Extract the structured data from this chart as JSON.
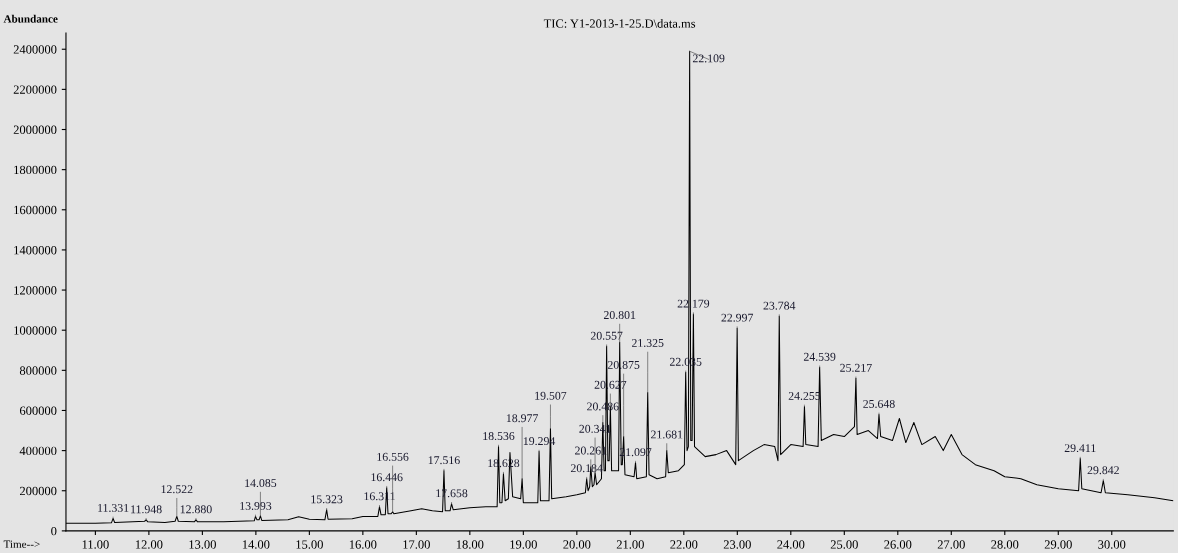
{
  "chart_data": {
    "type": "line",
    "title": "TIC: Y1-2013-1-25.D\\data.ms",
    "xlabel": "Time-->",
    "ylabel": "Abundance",
    "xlim": [
      10.45,
      31.15
    ],
    "ylim": [
      0,
      2480000
    ],
    "xticks": [
      {
        "value": 11,
        "label": "11.00"
      },
      {
        "value": 12,
        "label": "12.00"
      },
      {
        "value": 13,
        "label": "13.00"
      },
      {
        "value": 14,
        "label": "14.00"
      },
      {
        "value": 15,
        "label": "15.00"
      },
      {
        "value": 16,
        "label": "16.00"
      },
      {
        "value": 17,
        "label": "17.00"
      },
      {
        "value": 18,
        "label": "18.00"
      },
      {
        "value": 19,
        "label": "19.00"
      },
      {
        "value": 20,
        "label": "20.00"
      },
      {
        "value": 21,
        "label": "21.00"
      },
      {
        "value": 22,
        "label": "22.00"
      },
      {
        "value": 23,
        "label": "23.00"
      },
      {
        "value": 24,
        "label": "24.00"
      },
      {
        "value": 25,
        "label": "25.00"
      },
      {
        "value": 26,
        "label": "26.00"
      },
      {
        "value": 27,
        "label": "27.00"
      },
      {
        "value": 28,
        "label": "28.00"
      },
      {
        "value": 29,
        "label": "29.00"
      },
      {
        "value": 30,
        "label": "30.00"
      }
    ],
    "yticks": [
      0,
      200000,
      400000,
      600000,
      800000,
      1000000,
      1200000,
      1400000,
      1600000,
      1800000,
      2000000,
      2200000,
      2400000
    ],
    "grid": false,
    "legend": false,
    "marker": "none",
    "line_style": "solid",
    "series": [
      {
        "color": "#000000",
        "x": [
          10.45,
          11.0,
          11.3,
          11.331,
          11.36,
          11.7,
          11.92,
          11.948,
          11.98,
          12.3,
          12.49,
          12.522,
          12.55,
          12.85,
          12.88,
          12.91,
          13.4,
          13.97,
          13.993,
          14.02,
          14.06,
          14.085,
          14.11,
          14.6,
          14.8,
          15.0,
          15.29,
          15.323,
          15.35,
          15.8,
          16.0,
          16.28,
          16.311,
          16.34,
          16.42,
          16.446,
          16.47,
          16.53,
          16.556,
          16.58,
          16.9,
          17.1,
          17.3,
          17.49,
          17.516,
          17.54,
          17.63,
          17.658,
          17.69,
          18.0,
          18.3,
          18.51,
          18.536,
          18.56,
          18.6,
          18.628,
          18.66,
          18.72,
          18.75,
          18.8,
          18.95,
          18.977,
          19.0,
          19.27,
          19.294,
          19.32,
          19.48,
          19.507,
          19.53,
          19.8,
          20.0,
          20.16,
          20.184,
          20.21,
          20.24,
          20.261,
          20.29,
          20.32,
          20.341,
          20.37,
          20.46,
          20.486,
          20.51,
          20.535,
          20.557,
          20.58,
          20.605,
          20.627,
          20.65,
          20.78,
          20.801,
          20.83,
          20.85,
          20.875,
          20.9,
          21.07,
          21.097,
          21.12,
          21.3,
          21.325,
          21.35,
          21.5,
          21.66,
          21.681,
          21.71,
          21.9,
          22.01,
          22.035,
          22.06,
          22.085,
          22.109,
          22.13,
          22.155,
          22.179,
          22.2,
          22.4,
          22.6,
          22.8,
          22.97,
          22.997,
          23.02,
          23.3,
          23.5,
          23.7,
          23.76,
          23.784,
          23.81,
          24.0,
          24.23,
          24.255,
          24.28,
          24.51,
          24.539,
          24.57,
          24.8,
          25.0,
          25.19,
          25.217,
          25.24,
          25.45,
          25.62,
          25.648,
          25.68,
          25.9,
          26.03,
          26.15,
          26.3,
          26.45,
          26.7,
          26.85,
          27.0,
          27.2,
          27.45,
          27.8,
          28.0,
          28.3,
          28.6,
          29.0,
          29.38,
          29.411,
          29.44,
          29.8,
          29.842,
          29.88,
          30.3,
          30.8,
          31.15
        ],
        "values": [
          38000,
          38000,
          40000,
          62000,
          42000,
          45000,
          48000,
          55000,
          45000,
          42000,
          48000,
          72000,
          48000,
          45000,
          55000,
          45000,
          45000,
          50000,
          72000,
          55000,
          55000,
          75000,
          52000,
          55000,
          70000,
          58000,
          55000,
          105000,
          58000,
          60000,
          72000,
          72000,
          120000,
          80000,
          80000,
          215000,
          85000,
          85000,
          95000,
          85000,
          100000,
          110000,
          100000,
          95000,
          300000,
          100000,
          100000,
          135000,
          105000,
          115000,
          120000,
          120000,
          420000,
          140000,
          140000,
          285000,
          150000,
          160000,
          390000,
          170000,
          160000,
          260000,
          140000,
          140000,
          395000,
          150000,
          150000,
          510000,
          160000,
          170000,
          180000,
          190000,
          260000,
          200000,
          220000,
          320000,
          220000,
          230000,
          290000,
          230000,
          260000,
          540000,
          300000,
          300000,
          920000,
          350000,
          350000,
          620000,
          300000,
          300000,
          940000,
          330000,
          330000,
          470000,
          280000,
          270000,
          340000,
          260000,
          270000,
          690000,
          280000,
          260000,
          270000,
          400000,
          290000,
          300000,
          330000,
          790000,
          400000,
          420000,
          2390000,
          450000,
          450000,
          1080000,
          420000,
          370000,
          380000,
          400000,
          330000,
          1010000,
          350000,
          400000,
          430000,
          420000,
          350000,
          1070000,
          380000,
          430000,
          420000,
          620000,
          430000,
          420000,
          815000,
          450000,
          480000,
          470000,
          520000,
          760000,
          480000,
          500000,
          460000,
          580000,
          470000,
          450000,
          560000,
          440000,
          540000,
          430000,
          470000,
          400000,
          480000,
          380000,
          330000,
          300000,
          270000,
          260000,
          230000,
          210000,
          200000,
          360000,
          210000,
          190000,
          250000,
          190000,
          180000,
          165000,
          150000
        ]
      }
    ],
    "annotations": [
      {
        "text": "11.331",
        "x": 11.331,
        "y": 62000
      },
      {
        "text": "11.948",
        "x": 11.948,
        "y": 55000
      },
      {
        "text": "12.522",
        "x": 12.522,
        "y": 72000
      },
      {
        "text": "12.880",
        "x": 12.88,
        "y": 55000
      },
      {
        "text": "13.993",
        "x": 13.993,
        "y": 72000
      },
      {
        "text": "14.085",
        "x": 14.085,
        "y": 75000
      },
      {
        "text": "15.323",
        "x": 15.323,
        "y": 105000
      },
      {
        "text": "16.311",
        "x": 16.311,
        "y": 120000
      },
      {
        "text": "16.446",
        "x": 16.446,
        "y": 215000
      },
      {
        "text": "16.556",
        "x": 16.556,
        "y": 95000
      },
      {
        "text": "17.516",
        "x": 17.516,
        "y": 300000
      },
      {
        "text": "17.658",
        "x": 17.658,
        "y": 135000
      },
      {
        "text": "18.536",
        "x": 18.536,
        "y": 420000
      },
      {
        "text": "18.628",
        "x": 18.628,
        "y": 285000
      },
      {
        "text": "18.977",
        "x": 18.977,
        "y": 260000
      },
      {
        "text": "19.294",
        "x": 19.294,
        "y": 395000
      },
      {
        "text": "19.507",
        "x": 19.507,
        "y": 510000
      },
      {
        "text": "20.184",
        "x": 20.184,
        "y": 260000
      },
      {
        "text": "20.261",
        "x": 20.261,
        "y": 320000
      },
      {
        "text": "20.341",
        "x": 20.341,
        "y": 290000
      },
      {
        "text": "20.486",
        "x": 20.486,
        "y": 540000
      },
      {
        "text": "20.557",
        "x": 20.557,
        "y": 920000
      },
      {
        "text": "20.627",
        "x": 20.627,
        "y": 620000
      },
      {
        "text": "20.801",
        "x": 20.801,
        "y": 940000
      },
      {
        "text": "20.875",
        "x": 20.875,
        "y": 470000
      },
      {
        "text": "21.097",
        "x": 21.097,
        "y": 340000
      },
      {
        "text": "21.325",
        "x": 21.325,
        "y": 690000
      },
      {
        "text": "21.681",
        "x": 21.681,
        "y": 400000
      },
      {
        "text": "22.035",
        "x": 22.035,
        "y": 790000
      },
      {
        "text": "22.109",
        "x": 22.109,
        "y": 2390000
      },
      {
        "text": "22.179",
        "x": 22.179,
        "y": 1080000
      },
      {
        "text": "22.997",
        "x": 22.997,
        "y": 1010000
      },
      {
        "text": "23.784",
        "x": 23.784,
        "y": 1070000
      },
      {
        "text": "24.255",
        "x": 24.255,
        "y": 620000
      },
      {
        "text": "24.539",
        "x": 24.539,
        "y": 815000
      },
      {
        "text": "25.217",
        "x": 25.217,
        "y": 760000
      },
      {
        "text": "25.648",
        "x": 25.648,
        "y": 580000
      },
      {
        "text": "29.411",
        "x": 29.411,
        "y": 360000
      },
      {
        "text": "29.842",
        "x": 29.842,
        "y": 250000
      }
    ]
  }
}
